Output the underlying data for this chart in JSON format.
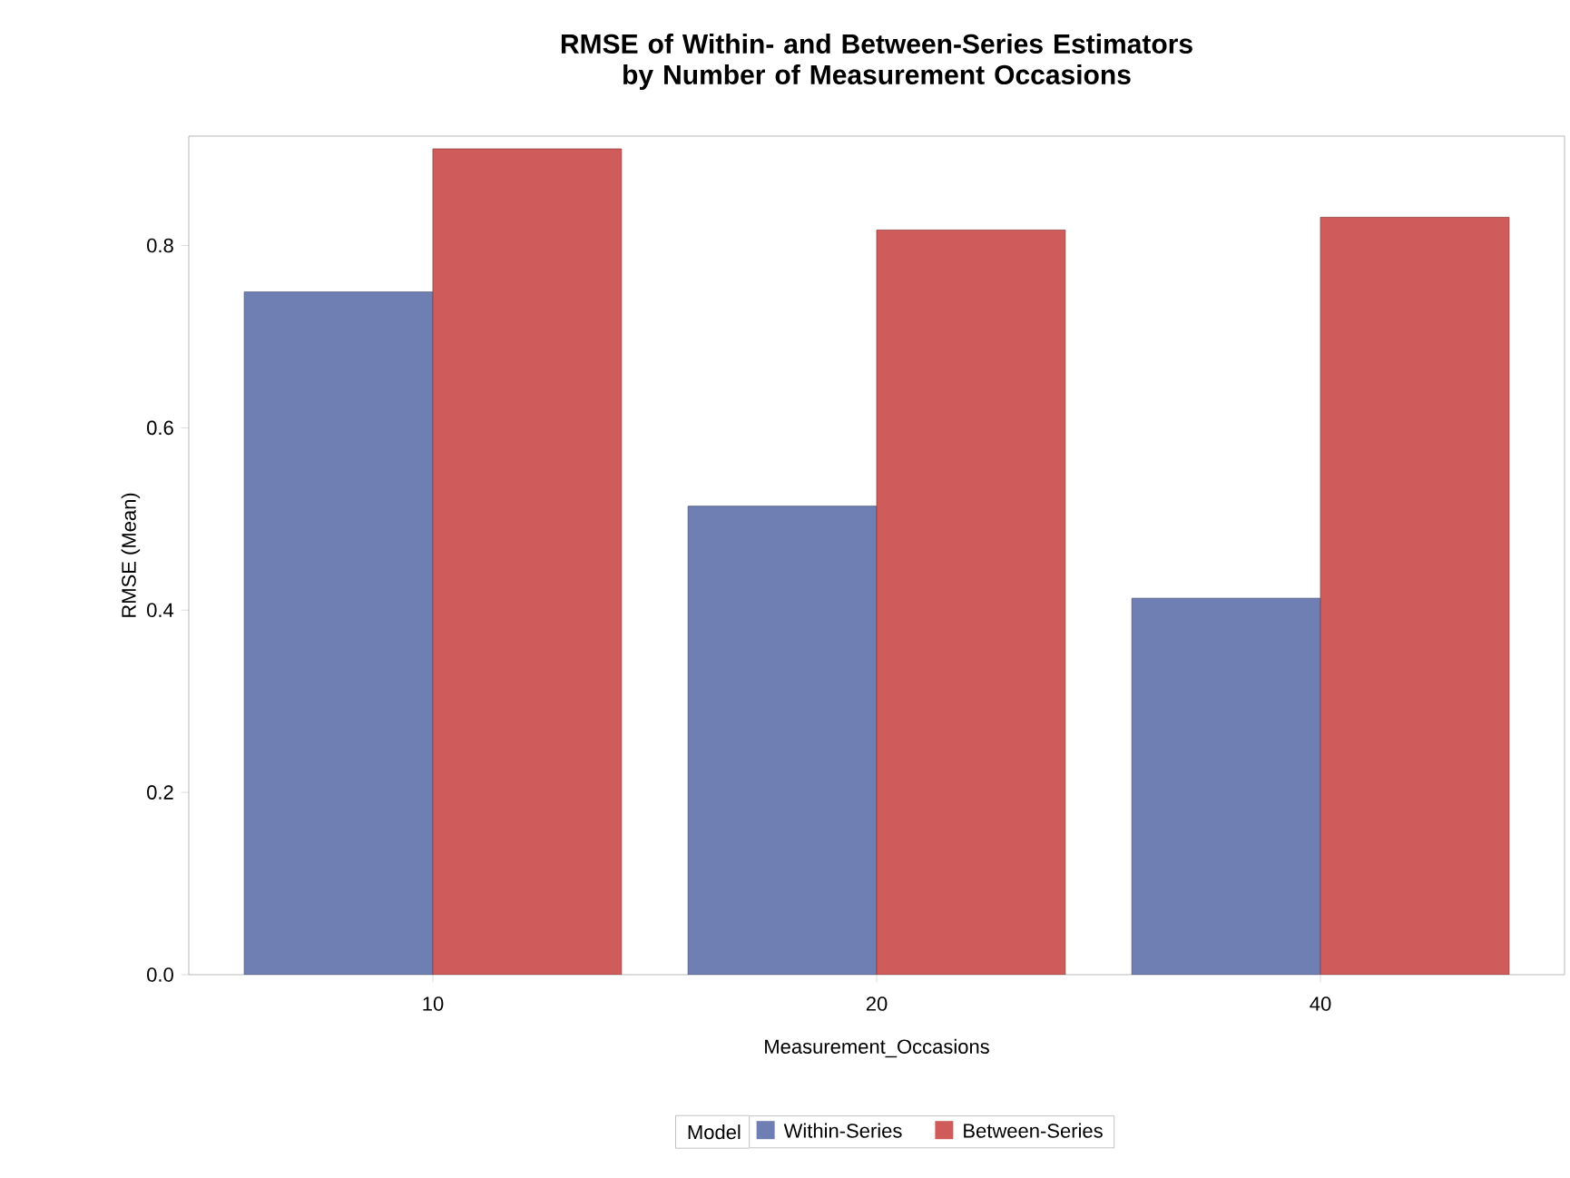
{
  "chart_data": {
    "type": "bar",
    "title": "RMSE of Within- and Between-Series Estimators by Number of Measurement Occasions",
    "xlabel": "Measurement_Occasions",
    "ylabel": "RMSE (Mean)",
    "legend_title": "Model",
    "categories": [
      "10",
      "20",
      "40"
    ],
    "series": [
      {
        "name": "Within-Series",
        "color": "#6f7eb3",
        "values": [
          0.749,
          0.514,
          0.413
        ]
      },
      {
        "name": "Between-Series",
        "color": "#d05b5b",
        "values": [
          0.906,
          0.817,
          0.831
        ]
      }
    ],
    "ylim": [
      0,
      0.92
    ],
    "yticks": [
      {
        "value": 0,
        "label": "0.0"
      },
      0.2,
      0.4,
      0.6,
      0.8
    ],
    "grid": false,
    "legend": "bottom"
  }
}
